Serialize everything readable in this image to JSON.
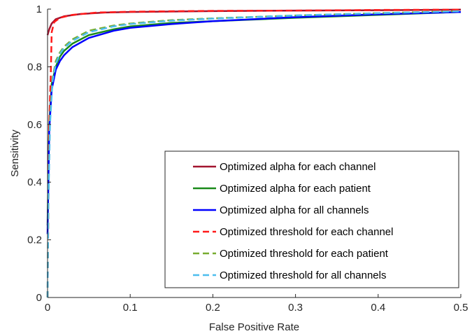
{
  "chart_data": {
    "type": "line",
    "title": "",
    "xlabel": "False Positive Rate",
    "ylabel": "Sensitivity",
    "xlim": [
      0,
      0.5
    ],
    "ylim": [
      0,
      1
    ],
    "x_ticks": [
      "0",
      "0.1",
      "0.2",
      "0.3",
      "0.4",
      "0.5"
    ],
    "y_ticks": [
      "0",
      "0.2",
      "0.4",
      "0.6",
      "0.8",
      "1"
    ],
    "grid": false,
    "legend_position": "bottom-right",
    "series": [
      {
        "name": "Optimized alpha for each channel",
        "color": "#a2142f",
        "style": "solid",
        "points": [
          [
            0,
            0.91
          ],
          [
            0.002,
            0.93
          ],
          [
            0.005,
            0.95
          ],
          [
            0.01,
            0.965
          ],
          [
            0.02,
            0.975
          ],
          [
            0.04,
            0.983
          ],
          [
            0.07,
            0.988
          ],
          [
            0.1,
            0.99
          ],
          [
            0.2,
            0.993
          ],
          [
            0.3,
            0.995
          ],
          [
            0.4,
            0.996
          ],
          [
            0.5,
            0.998
          ]
        ]
      },
      {
        "name": "Optimized alpha for each patient",
        "color": "#1a8a1a",
        "style": "solid",
        "points": [
          [
            0,
            0.25
          ],
          [
            0.002,
            0.6
          ],
          [
            0.005,
            0.74
          ],
          [
            0.01,
            0.8
          ],
          [
            0.015,
            0.835
          ],
          [
            0.02,
            0.855
          ],
          [
            0.03,
            0.88
          ],
          [
            0.05,
            0.91
          ],
          [
            0.08,
            0.93
          ],
          [
            0.1,
            0.94
          ],
          [
            0.15,
            0.952
          ],
          [
            0.2,
            0.958
          ],
          [
            0.3,
            0.97
          ],
          [
            0.4,
            0.98
          ],
          [
            0.5,
            0.99
          ]
        ]
      },
      {
        "name": "Optimized alpha for all channels",
        "color": "#0000ff",
        "style": "solid",
        "points": [
          [
            0,
            0.22
          ],
          [
            0.002,
            0.58
          ],
          [
            0.005,
            0.72
          ],
          [
            0.01,
            0.79
          ],
          [
            0.015,
            0.82
          ],
          [
            0.02,
            0.84
          ],
          [
            0.03,
            0.868
          ],
          [
            0.05,
            0.9
          ],
          [
            0.08,
            0.925
          ],
          [
            0.1,
            0.935
          ],
          [
            0.15,
            0.948
          ],
          [
            0.2,
            0.958
          ],
          [
            0.3,
            0.972
          ],
          [
            0.4,
            0.982
          ],
          [
            0.5,
            0.99
          ]
        ]
      },
      {
        "name": "Optimized threshold for each channel",
        "color": "#ff1a1a",
        "style": "dashed",
        "points": [
          [
            0,
            0.0
          ],
          [
            0.001,
            0.3
          ],
          [
            0.002,
            0.6
          ],
          [
            0.004,
            0.78
          ],
          [
            0.005,
            0.92
          ],
          [
            0.008,
            0.955
          ],
          [
            0.015,
            0.97
          ],
          [
            0.03,
            0.98
          ],
          [
            0.06,
            0.988
          ],
          [
            0.1,
            0.991
          ],
          [
            0.2,
            0.994
          ],
          [
            0.3,
            0.995
          ],
          [
            0.4,
            0.997
          ],
          [
            0.5,
            0.998
          ]
        ]
      },
      {
        "name": "Optimized threshold for each patient",
        "color": "#77ac30",
        "style": "dashed",
        "points": [
          [
            0,
            0.0
          ],
          [
            0.001,
            0.35
          ],
          [
            0.003,
            0.62
          ],
          [
            0.006,
            0.76
          ],
          [
            0.01,
            0.82
          ],
          [
            0.015,
            0.85
          ],
          [
            0.02,
            0.87
          ],
          [
            0.03,
            0.895
          ],
          [
            0.05,
            0.925
          ],
          [
            0.08,
            0.943
          ],
          [
            0.1,
            0.95
          ],
          [
            0.15,
            0.962
          ],
          [
            0.2,
            0.968
          ],
          [
            0.3,
            0.978
          ],
          [
            0.4,
            0.986
          ],
          [
            0.5,
            0.993
          ]
        ]
      },
      {
        "name": "Optimized threshold for all channels",
        "color": "#4dbeee",
        "style": "dashed",
        "points": [
          [
            0,
            0.0
          ],
          [
            0.001,
            0.33
          ],
          [
            0.003,
            0.6
          ],
          [
            0.006,
            0.75
          ],
          [
            0.01,
            0.81
          ],
          [
            0.015,
            0.845
          ],
          [
            0.02,
            0.865
          ],
          [
            0.03,
            0.89
          ],
          [
            0.05,
            0.92
          ],
          [
            0.08,
            0.94
          ],
          [
            0.1,
            0.948
          ],
          [
            0.15,
            0.96
          ],
          [
            0.2,
            0.967
          ],
          [
            0.3,
            0.978
          ],
          [
            0.4,
            0.986
          ],
          [
            0.5,
            0.993
          ]
        ]
      }
    ]
  }
}
